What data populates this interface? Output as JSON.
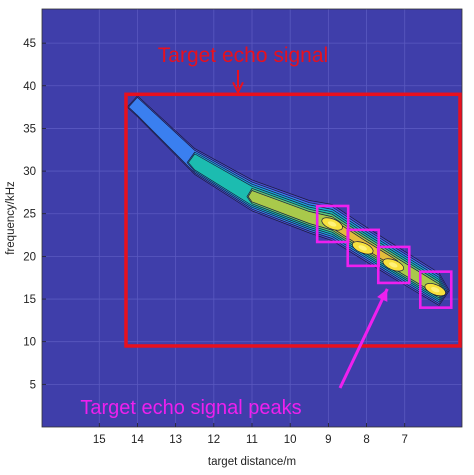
{
  "chart_data": {
    "type": "heatmap",
    "xlabel": "target distance/m",
    "ylabel": "frequency/kHz",
    "x_reversed": true,
    "xlim": [
      16.5,
      5.5
    ],
    "ylim": [
      0,
      49
    ],
    "x_ticks": [
      15,
      14,
      13,
      12,
      11,
      10,
      9,
      8,
      7
    ],
    "y_ticks": [
      5,
      10,
      15,
      20,
      25,
      30,
      35,
      40,
      45
    ],
    "grid": true,
    "colormap": "parula",
    "background_color": "#3f3eaa",
    "contour_levels": 8,
    "echo_ridge": [
      {
        "distance": 14.0,
        "frequency": 37.5,
        "intensity": 0.18
      },
      {
        "distance": 12.5,
        "frequency": 31.0,
        "intensity": 0.45
      },
      {
        "distance": 11.0,
        "frequency": 27.0,
        "intensity": 0.72
      },
      {
        "distance": 9.5,
        "frequency": 24.5,
        "intensity": 0.8
      },
      {
        "distance": 8.9,
        "frequency": 23.8,
        "intensity": 1.0
      },
      {
        "distance": 8.1,
        "frequency": 21.5,
        "intensity": 0.92
      },
      {
        "distance": 7.2,
        "frequency": 19.0,
        "intensity": 0.88
      },
      {
        "distance": 6.1,
        "frequency": 16.0,
        "intensity": 0.8
      }
    ],
    "echo_region": {
      "distance": [
        14.3,
        5.5
      ],
      "frequency": [
        9.5,
        39
      ]
    },
    "peaks": [
      {
        "distance": 8.9,
        "frequency": 23.8
      },
      {
        "distance": 8.1,
        "frequency": 21.0
      },
      {
        "distance": 7.3,
        "frequency": 19.0
      },
      {
        "distance": 6.2,
        "frequency": 16.1
      }
    ],
    "annotations": {
      "echo_label": "Target echo signal",
      "peaks_label": "Target echo signal peaks",
      "echo_color": "#e8101e",
      "peaks_color": "#ee20ee"
    }
  }
}
